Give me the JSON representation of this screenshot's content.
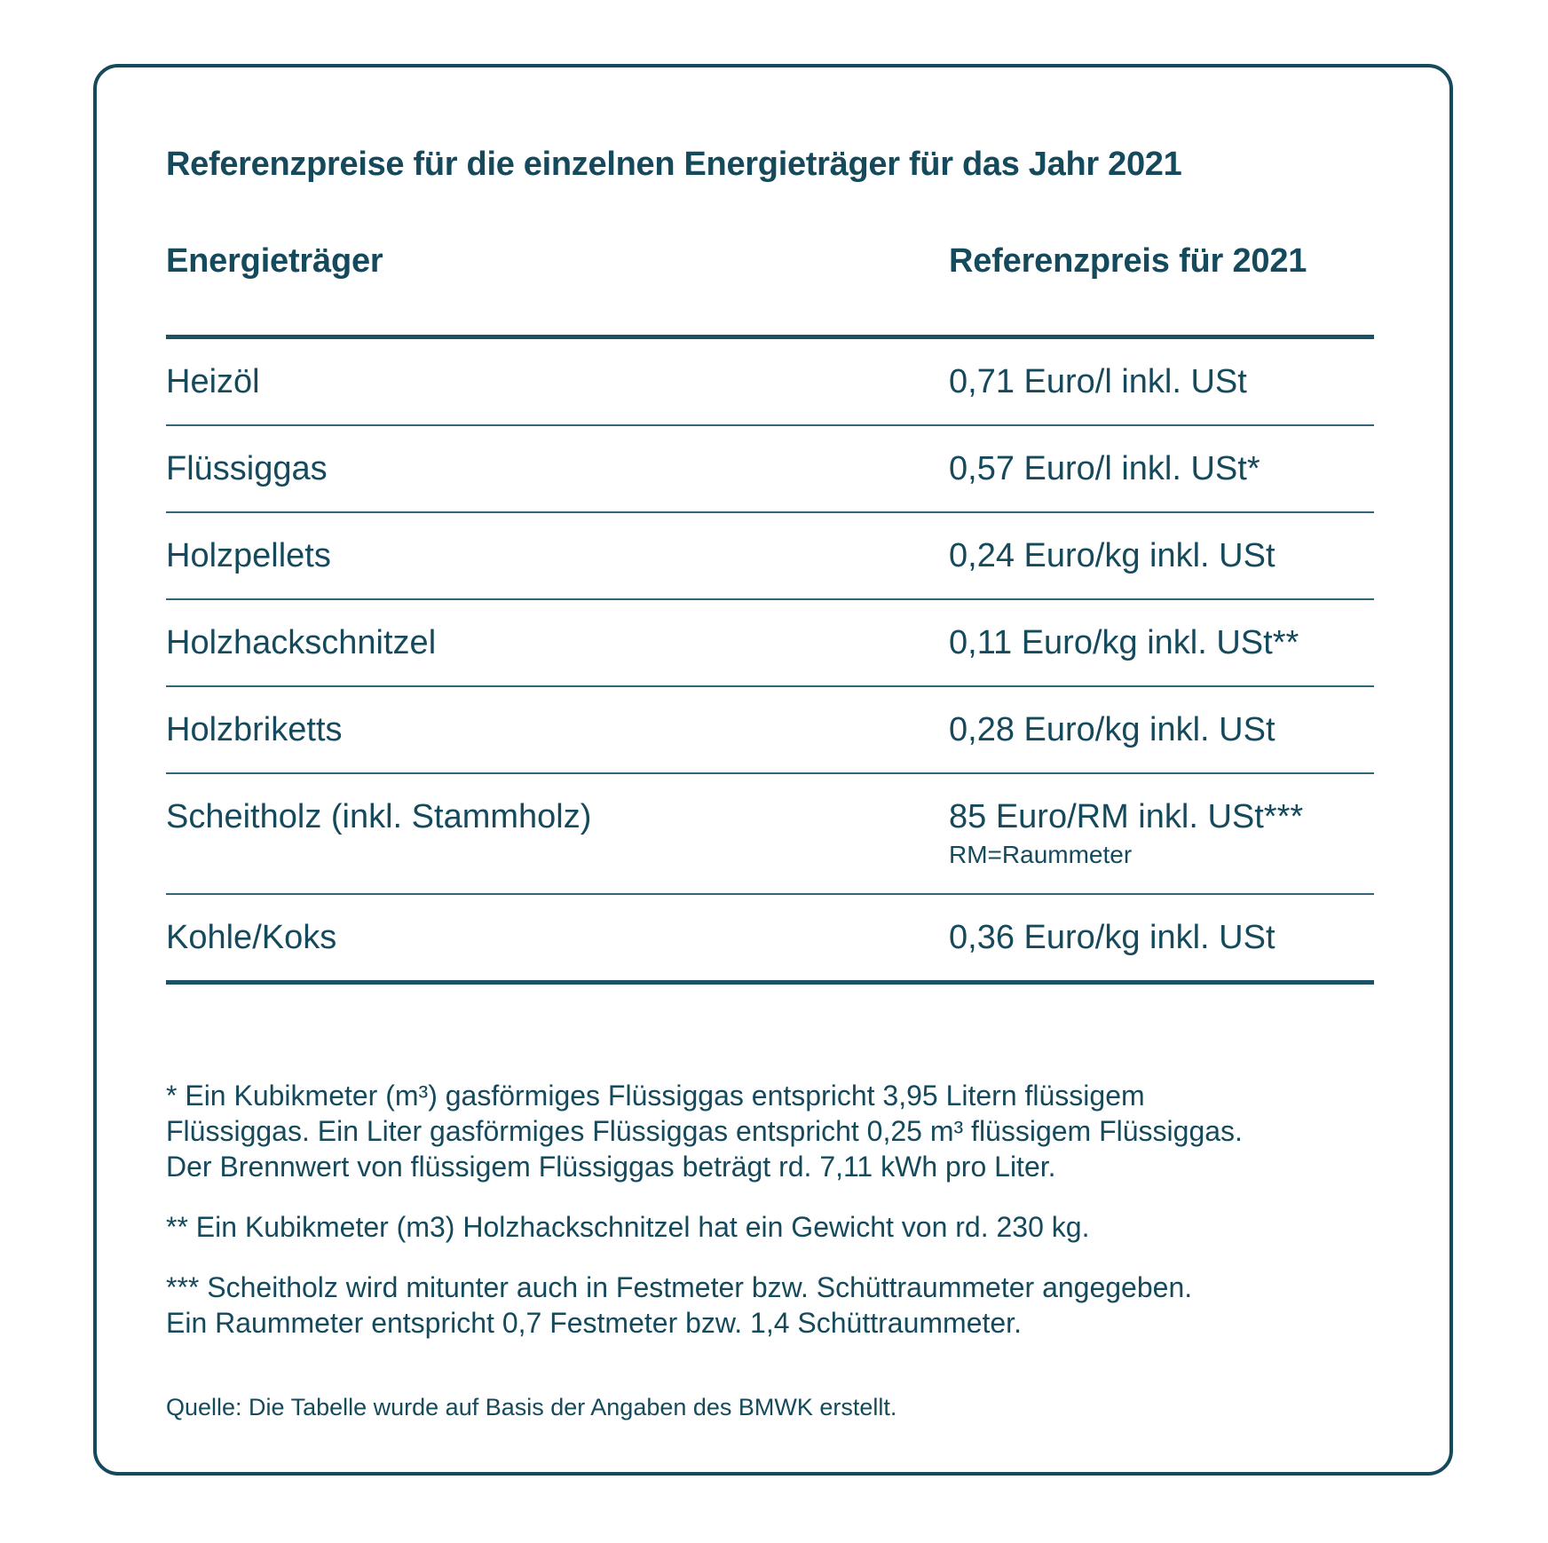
{
  "card": {
    "title": "Referenzpreise für die einzelnen Energieträger für das Jahr 2021"
  },
  "table": {
    "col1_header": "Energieträger",
    "col2_header": "Referenzpreis für 2021",
    "rows": [
      {
        "label": "Heizöl",
        "value": "0,71 Euro/l inkl. USt"
      },
      {
        "label": "Flüssiggas",
        "value": "0,57 Euro/l inkl. USt*"
      },
      {
        "label": "Holzpellets",
        "value": "0,24 Euro/kg inkl. USt"
      },
      {
        "label": "Holzhackschnitzel",
        "value": "0,11 Euro/kg inkl. USt**"
      },
      {
        "label": "Holzbriketts",
        "value": "0,28 Euro/kg inkl. USt"
      },
      {
        "label": "Scheitholz (inkl. Stammholz)",
        "value": "85 Euro/RM inkl. USt***",
        "note": "RM=Raummeter"
      },
      {
        "label": "Kohle/Koks",
        "value": "0,36 Euro/kg inkl. USt"
      }
    ]
  },
  "footnotes": [
    "* Ein Kubikmeter (m³) gasförmiges Flüssiggas entspricht 3,95 Litern flüssigem\nFlüssiggas. Ein Liter gasförmiges Flüssiggas entspricht 0,25 m³ flüssigem Flüssiggas.\nDer Brennwert von flüssigem Flüssiggas beträgt rd. 7,11 kWh pro Liter.",
    "** Ein Kubikmeter (m3) Holzhackschnitzel hat ein Gewicht von rd. 230 kg.",
    "*** Scheitholz wird mitunter auch in Festmeter bzw. Schüttraummeter angegeben.\nEin Raummeter entspricht 0,7 Festmeter bzw. 1,4 Schüttraummeter."
  ],
  "source": "Quelle: Die Tabelle wurde auf Basis der Angaben des BMWK erstellt.",
  "colors": {
    "text": "#15495C",
    "border": "#15495C",
    "thick_line": "#1B5266",
    "thin_line": "#2F6678",
    "background": "#ffffff"
  }
}
